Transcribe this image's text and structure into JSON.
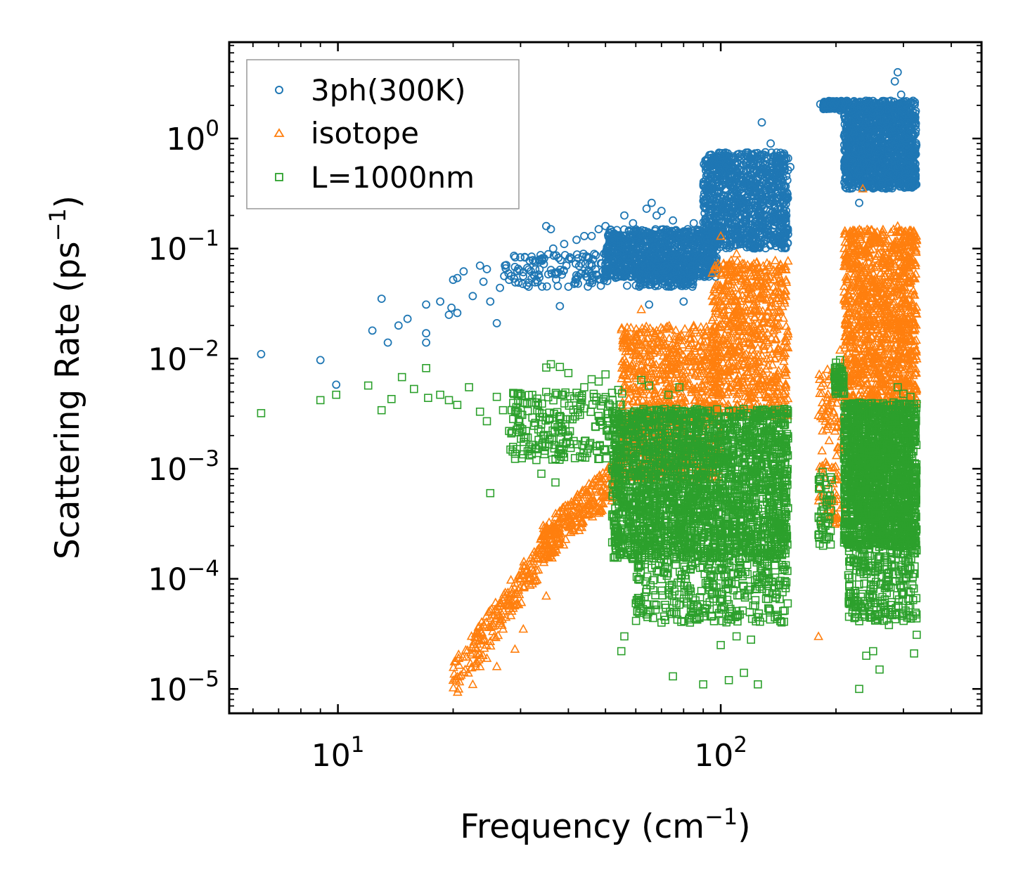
{
  "chart_data": {
    "type": "scatter",
    "title": "",
    "xlabel": {
      "text": "Frequency (cm",
      "sup": "−1",
      "tail": ")"
    },
    "ylabel": {
      "text": "Scattering Rate (ps",
      "sup": "−1",
      "tail": ")"
    },
    "xscale": "log",
    "yscale": "log",
    "xlim": [
      5.2,
      480
    ],
    "ylim": [
      6e-06,
      7.5
    ],
    "x_ticks": [
      {
        "value": 10,
        "base": "10",
        "exp": "1"
      },
      {
        "value": 100,
        "base": "10",
        "exp": "2"
      }
    ],
    "y_ticks": [
      {
        "value": 1e-05,
        "base": "10",
        "exp": "−5"
      },
      {
        "value": 0.0001,
        "base": "10",
        "exp": "−4"
      },
      {
        "value": 0.001,
        "base": "10",
        "exp": "−3"
      },
      {
        "value": 0.01,
        "base": "10",
        "exp": "−2"
      },
      {
        "value": 0.1,
        "base": "10",
        "exp": "−1"
      },
      {
        "value": 1,
        "base": "10",
        "exp": "0"
      }
    ],
    "legend": {
      "position": "top-left",
      "frame": true
    },
    "series": [
      {
        "name": "3ph(300K)",
        "marker": "circle",
        "color": "#1f77b4",
        "points": [
          [
            6.3,
            0.011
          ],
          [
            9.0,
            0.0097
          ],
          [
            9.9,
            0.0058
          ],
          [
            12.3,
            0.018
          ],
          [
            13.0,
            0.035
          ],
          [
            13.5,
            0.014
          ],
          [
            14.4,
            0.02
          ],
          [
            15.2,
            0.023
          ],
          [
            17.0,
            0.031
          ],
          [
            17.0,
            0.017
          ],
          [
            17.0,
            0.014
          ],
          [
            18.5,
            0.033
          ],
          [
            19.5,
            0.025
          ],
          [
            19.8,
            0.029
          ],
          [
            20.0,
            0.052
          ],
          [
            20.5,
            0.054
          ],
          [
            20.5,
            0.026
          ],
          [
            21.3,
            0.062
          ],
          [
            22.5,
            0.037
          ],
          [
            23.5,
            0.07
          ],
          [
            24.0,
            0.05
          ],
          [
            24.5,
            0.065
          ],
          [
            25.0,
            0.033
          ],
          [
            26.0,
            0.021
          ],
          [
            26.5,
            0.044
          ],
          [
            28.0,
            0.052
          ],
          [
            29.0,
            0.068
          ],
          [
            30.5,
            0.061
          ],
          [
            31.5,
            0.045
          ],
          [
            33.0,
            0.052
          ],
          [
            35.0,
            0.16
          ],
          [
            36.0,
            0.15
          ],
          [
            36.5,
            0.1
          ],
          [
            38.0,
            0.03
          ],
          [
            39.0,
            0.11
          ],
          [
            40.0,
            0.045
          ],
          [
            42.0,
            0.12
          ],
          [
            44.0,
            0.13
          ],
          [
            46.0,
            0.13
          ],
          [
            48.0,
            0.15
          ],
          [
            50.0,
            0.16
          ],
          [
            52.0,
            0.12
          ],
          [
            56.0,
            0.2
          ],
          [
            59.0,
            0.17
          ],
          [
            62.0,
            0.14
          ],
          [
            64.0,
            0.23
          ],
          [
            66.0,
            0.26
          ],
          [
            68.0,
            0.2
          ],
          [
            70.0,
            0.22
          ],
          [
            72.0,
            0.14
          ],
          [
            75.0,
            0.18
          ],
          [
            78.0,
            0.13
          ],
          [
            82.0,
            0.15
          ],
          [
            85.0,
            0.17
          ],
          [
            88.0,
            0.13
          ],
          [
            80.0,
            0.033
          ],
          [
            65.0,
            0.031
          ],
          [
            92.0,
            0.08
          ],
          [
            100.0,
            0.25
          ],
          [
            103.0,
            0.5
          ],
          [
            108.0,
            0.35
          ],
          [
            115.0,
            0.25
          ],
          [
            120.0,
            0.4
          ],
          [
            125.0,
            0.6
          ],
          [
            128.0,
            1.4
          ],
          [
            135.0,
            0.9
          ],
          [
            145.0,
            0.7
          ],
          [
            152.0,
            0.55
          ],
          [
            182.0,
            2.05
          ],
          [
            186.0,
            2.1
          ],
          [
            190.0,
            2.0
          ],
          [
            198.0,
            2.0
          ],
          [
            205.0,
            1.8
          ],
          [
            215.0,
            1.6
          ],
          [
            220.0,
            1.2
          ],
          [
            225.0,
            0.8
          ],
          [
            232.0,
            1.9
          ],
          [
            240.0,
            2.2
          ],
          [
            250.0,
            1.7
          ],
          [
            260.0,
            1.0
          ],
          [
            270.0,
            0.35
          ],
          [
            278.0,
            2.2
          ],
          [
            285.0,
            3.3
          ],
          [
            290.0,
            4.0
          ],
          [
            296.0,
            2.5
          ],
          [
            305.0,
            2.0
          ],
          [
            310.0,
            0.6
          ],
          [
            318.0,
            2.2
          ],
          [
            322.0,
            1.7
          ],
          [
            230.0,
            0.26
          ]
        ],
        "bands": [
          {
            "x": [
              27,
              58
            ],
            "y": [
              0.045,
              0.09
            ],
            "n": 140
          },
          {
            "x": [
              50,
              98
            ],
            "y": [
              0.055,
              0.15
            ],
            "n": 900
          },
          {
            "x": [
              60,
              85
            ],
            "y": [
              0.045,
              0.07
            ],
            "n": 180
          },
          {
            "x": [
              90,
              150
            ],
            "y": [
              0.1,
              0.75
            ],
            "n": 1000
          },
          {
            "x": [
              185,
              210
            ],
            "y": [
              1.85,
              2.2
            ],
            "n": 140
          },
          {
            "x": [
              210,
              325
            ],
            "y": [
              0.35,
              2.2
            ],
            "n": 1300
          }
        ]
      },
      {
        "name": "isotope",
        "marker": "triangle",
        "color": "#ff7f0e",
        "points": [
          [
            20.0,
            1.2e-05
          ],
          [
            20.8,
            1.3e-05
          ],
          [
            21.5,
            1.5e-05
          ],
          [
            21.9,
            1.4e-05
          ],
          [
            22.5,
            1.1e-05
          ],
          [
            23.5,
            1.6e-05
          ],
          [
            24.5,
            1.9e-05
          ],
          [
            25.0,
            2.7e-05
          ],
          [
            26.2,
            4.6e-05
          ],
          [
            26.0,
            1.6e-05
          ],
          [
            27.0,
            3.5e-05
          ],
          [
            28.0,
            6.4e-05
          ],
          [
            29.0,
            2.3e-05
          ],
          [
            30.5,
            3.5e-05
          ],
          [
            31.5,
            0.0001
          ],
          [
            33.0,
            0.00012
          ],
          [
            34.5,
            0.00015
          ],
          [
            35.0,
            7e-05
          ],
          [
            36.0,
            0.00019
          ],
          [
            37.0,
            0.0003
          ],
          [
            40.0,
            0.0003
          ],
          [
            45.0,
            0.00038
          ],
          [
            50.0,
            0.00055
          ],
          [
            55.0,
            0.0008
          ],
          [
            62.0,
            0.028
          ],
          [
            68.0,
            0.018
          ],
          [
            75.0,
            0.012
          ],
          [
            85.0,
            0.02
          ],
          [
            95.0,
            0.06
          ],
          [
            100.0,
            0.13
          ],
          [
            110.0,
            0.09
          ],
          [
            118.0,
            0.035
          ],
          [
            125.0,
            0.015
          ],
          [
            132.0,
            0.01
          ],
          [
            180.0,
            3e-05
          ],
          [
            185.0,
            0.006
          ],
          [
            190.0,
            0.008
          ],
          [
            195.0,
            0.004
          ],
          [
            205.0,
            0.012
          ],
          [
            220.0,
            0.12
          ],
          [
            235.0,
            0.35
          ],
          [
            245.0,
            0.12
          ],
          [
            255.0,
            0.04
          ],
          [
            265.0,
            0.03
          ],
          [
            280.0,
            0.1
          ],
          [
            290.0,
            0.16
          ],
          [
            300.0,
            0.06
          ],
          [
            310.0,
            0.055
          ],
          [
            318.0,
            0.03
          ],
          [
            325.0,
            0.01
          ]
        ],
        "bands": [
          {
            "x": [
              20,
              38
            ],
            "y": [
              1.2e-05,
              0.00028
            ],
            "ys": [
              1.2e-05,
              0.00028
            ],
            "n": 220,
            "line": true
          },
          {
            "x": [
              34,
              55
            ],
            "y": [
              0.0002,
              0.0009
            ],
            "n": 260,
            "line": true
          },
          {
            "x": [
              55,
              100
            ],
            "y": [
              0.0008,
              0.02
            ],
            "n": 900
          },
          {
            "x": [
              95,
              150
            ],
            "y": [
              0.003,
              0.08
            ],
            "n": 700
          },
          {
            "x": [
              180,
              210
            ],
            "y": [
              0.0003,
              0.008
            ],
            "n": 120
          },
          {
            "x": [
              210,
              325
            ],
            "y": [
              0.0035,
              0.15
            ],
            "n": 1200
          }
        ]
      },
      {
        "name": "L=1000nm",
        "marker": "square",
        "color": "#2ca02c",
        "points": [
          [
            6.3,
            0.0032
          ],
          [
            9.0,
            0.0042
          ],
          [
            9.9,
            0.0047
          ],
          [
            12.0,
            0.0057
          ],
          [
            13.0,
            0.0034
          ],
          [
            13.8,
            0.0043
          ],
          [
            14.7,
            0.0068
          ],
          [
            15.8,
            0.0053
          ],
          [
            17.0,
            0.0082
          ],
          [
            17.2,
            0.0044
          ],
          [
            18.5,
            0.0047
          ],
          [
            19.5,
            0.0042
          ],
          [
            20.5,
            0.0038
          ],
          [
            22.0,
            0.0055
          ],
          [
            23.5,
            0.0033
          ],
          [
            24.5,
            0.0027
          ],
          [
            25.0,
            0.0006
          ],
          [
            26.0,
            0.0045
          ],
          [
            27.0,
            0.0034
          ],
          [
            28.0,
            0.0022
          ],
          [
            30.0,
            0.0031
          ],
          [
            31.0,
            0.0022
          ],
          [
            32.0,
            0.0015
          ],
          [
            33.0,
            0.0012
          ],
          [
            34.0,
            0.0009
          ],
          [
            35.0,
            0.0083
          ],
          [
            36.0,
            0.0089
          ],
          [
            37.0,
            0.00075
          ],
          [
            38.0,
            0.0084
          ],
          [
            40.0,
            0.0074
          ],
          [
            42.0,
            0.0049
          ],
          [
            44.0,
            0.0055
          ],
          [
            46.0,
            0.0065
          ],
          [
            48.0,
            0.0062
          ],
          [
            50.0,
            0.0072
          ],
          [
            52.0,
            0.0049
          ],
          [
            54.0,
            0.0052
          ],
          [
            56.0,
            3e-05
          ],
          [
            55.0,
            2.2e-05
          ],
          [
            60.0,
            6e-05
          ],
          [
            62.0,
            0.0064
          ],
          [
            65.0,
            0.0057
          ],
          [
            70.0,
            4e-05
          ],
          [
            73.0,
            0.0047
          ],
          [
            75.0,
            1.3e-05
          ],
          [
            78.0,
            0.0055
          ],
          [
            85.0,
            5.5e-05
          ],
          [
            90.0,
            1.1e-05
          ],
          [
            100.0,
            2.5e-05
          ],
          [
            105.0,
            1.2e-05
          ],
          [
            110.0,
            3e-05
          ],
          [
            115.0,
            1.4e-05
          ],
          [
            120.0,
            2.8e-05
          ],
          [
            125.0,
            1.1e-05
          ],
          [
            180.0,
            0.00025
          ],
          [
            185.0,
            0.0002
          ],
          [
            200.0,
            0.0092
          ],
          [
            205.0,
            0.0097
          ],
          [
            210.0,
            0.0048
          ],
          [
            215.0,
            0.0038
          ],
          [
            225.0,
            4.8e-05
          ],
          [
            230.0,
            1e-05
          ],
          [
            240.0,
            2e-05
          ],
          [
            250.0,
            2.2e-05
          ],
          [
            260.0,
            1.5e-05
          ],
          [
            275.0,
            3.8e-05
          ],
          [
            290.0,
            0.0055
          ],
          [
            300.0,
            0.0048
          ],
          [
            305.0,
            0.0033
          ],
          [
            310.0,
            0.00011
          ],
          [
            320.0,
            2.1e-05
          ],
          [
            325.0,
            3.1e-05
          ],
          [
            313.0,
            0.0045
          ]
        ],
        "bands": [
          {
            "x": [
              28,
              56
            ],
            "y": [
              0.0012,
              0.005
            ],
            "n": 220
          },
          {
            "x": [
              52,
              150
            ],
            "y": [
              0.00015,
              0.0035
            ],
            "n": 2400
          },
          {
            "x": [
              60,
              150
            ],
            "y": [
              4e-05,
              0.00015
            ],
            "n": 320
          },
          {
            "x": [
              180,
              195
            ],
            "y": [
              0.0002,
              0.001
            ],
            "n": 50
          },
          {
            "x": [
              198,
              210
            ],
            "y": [
              0.0045,
              0.0085
            ],
            "n": 60
          },
          {
            "x": [
              210,
              325
            ],
            "y": [
              0.0002,
              0.004
            ],
            "n": 1800
          },
          {
            "x": [
              215,
              325
            ],
            "y": [
              4e-05,
              0.0002
            ],
            "n": 260
          }
        ]
      }
    ]
  }
}
